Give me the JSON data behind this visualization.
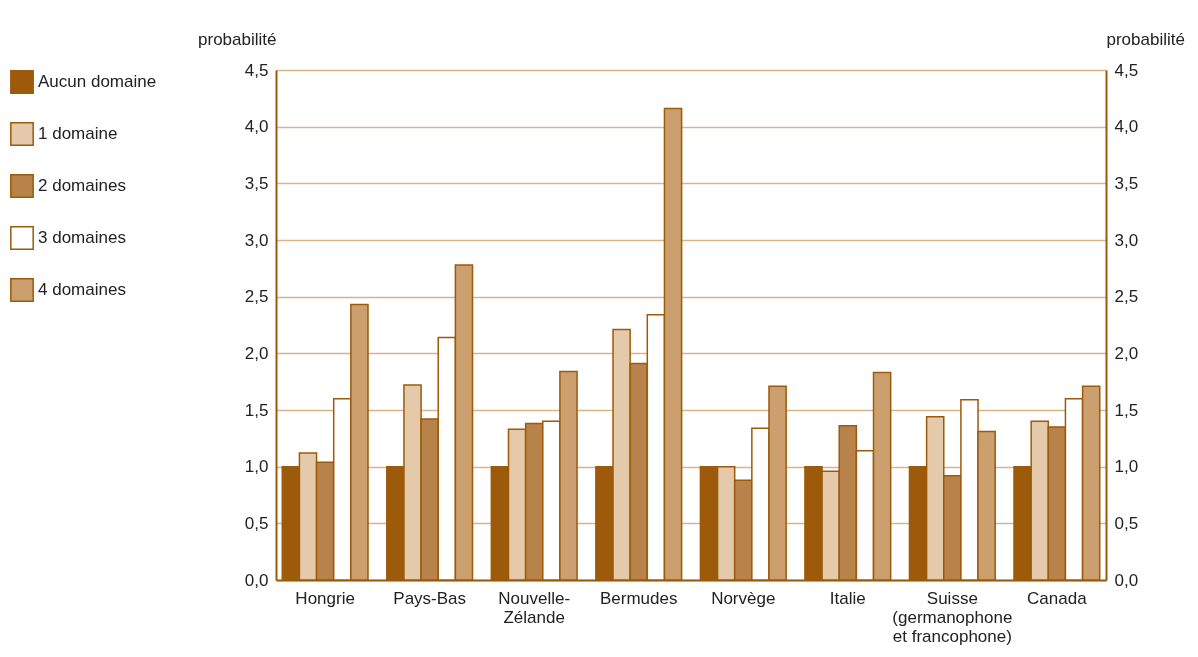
{
  "chart_data": {
    "type": "bar",
    "categories": [
      "Hongrie",
      "Pays-Bas",
      "Nouvelle-\nZélande",
      "Bermudes",
      "Norvège",
      "Italie",
      "Suisse\n(germanophone\net francophone)",
      "Canada"
    ],
    "series": [
      {
        "name": "Aucun domaine",
        "color": "#9c5a0a",
        "values": [
          1.0,
          1.0,
          1.0,
          1.0,
          1.0,
          1.0,
          1.0,
          1.0
        ]
      },
      {
        "name": "1 domaine",
        "color": "#e4c9aa",
        "values": [
          1.12,
          1.72,
          1.33,
          2.21,
          1.0,
          0.96,
          1.44,
          1.4
        ]
      },
      {
        "name": "2 domaines",
        "color": "#b8834a",
        "values": [
          1.04,
          1.42,
          1.38,
          1.91,
          0.88,
          1.36,
          0.92,
          1.35
        ]
      },
      {
        "name": "3 domaines",
        "color": "#ffffff",
        "values": [
          1.6,
          2.14,
          1.4,
          2.34,
          1.34,
          1.14,
          1.59,
          1.6
        ]
      },
      {
        "name": "4 domaines",
        "color": "#cba06e",
        "values": [
          2.43,
          2.78,
          1.84,
          4.16,
          1.71,
          1.83,
          1.31,
          1.71
        ]
      }
    ],
    "ylabel": "probabilité",
    "y2label": "probabilité",
    "ylim": [
      0,
      4.5
    ],
    "yticks": [
      {
        "value": 0,
        "label": "0,0"
      },
      {
        "value": 0.5,
        "label": "0,5"
      },
      {
        "value": 1,
        "label": "1,0"
      },
      {
        "value": 1.5,
        "label": "1,5"
      },
      {
        "value": 2,
        "label": "2,0"
      },
      {
        "value": 2.5,
        "label": "2,5"
      },
      {
        "value": 3,
        "label": "3,0"
      },
      {
        "value": 3.5,
        "label": "3,5"
      },
      {
        "value": 4,
        "label": "4,0"
      },
      {
        "value": 4.5,
        "label": "4,5"
      }
    ],
    "y2lim": [
      0,
      4.5
    ],
    "y2ticks": [
      {
        "value": 0,
        "label": "0,0"
      },
      {
        "value": 0.5,
        "label": "0,5"
      },
      {
        "value": 1,
        "label": "1,0"
      },
      {
        "value": 1.5,
        "label": "1,5"
      },
      {
        "value": 2,
        "label": "2,0"
      },
      {
        "value": 2.5,
        "label": "2,5"
      },
      {
        "value": 3,
        "label": "3,0"
      },
      {
        "value": 3.5,
        "label": "3,5"
      },
      {
        "value": 4,
        "label": "4,0"
      },
      {
        "value": 4.5,
        "label": "4,5"
      }
    ],
    "grid": "y",
    "legend": "left"
  }
}
